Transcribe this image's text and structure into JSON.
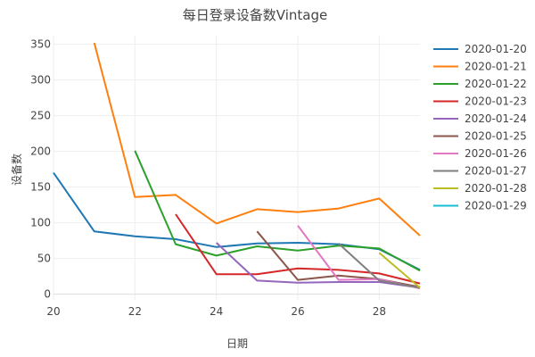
{
  "chart_data": {
    "type": "line",
    "title": "每日登录设备数Vintage",
    "xlabel": "日期",
    "ylabel": "设备数",
    "xlim": [
      20,
      29
    ],
    "ylim": [
      -8,
      362
    ],
    "xticks": [
      20,
      22,
      24,
      26,
      28
    ],
    "yticks": [
      0,
      50,
      100,
      150,
      200,
      250,
      300,
      350
    ],
    "grid": true,
    "legend_position": "right",
    "series": [
      {
        "name": "2020-01-20",
        "color": "#1f77b4",
        "x": [
          20,
          21,
          22,
          23,
          24,
          25,
          26,
          27,
          28,
          29
        ],
        "y": [
          170,
          88,
          81,
          77,
          66,
          71,
          72,
          70,
          63,
          34
        ]
      },
      {
        "name": "2020-01-21",
        "color": "#ff7f0e",
        "x": [
          21,
          22,
          23,
          24,
          25,
          26,
          27,
          28,
          29
        ],
        "y": [
          352,
          136,
          139,
          99,
          119,
          115,
          120,
          134,
          82
        ]
      },
      {
        "name": "2020-01-22",
        "color": "#2ca02c",
        "x": [
          22,
          23,
          24,
          25,
          26,
          27,
          28,
          29
        ],
        "y": [
          201,
          70,
          54,
          67,
          61,
          68,
          64,
          33
        ]
      },
      {
        "name": "2020-01-23",
        "color": "#d62728",
        "x": [
          23,
          24,
          25,
          26,
          27,
          28,
          29
        ],
        "y": [
          112,
          28,
          28,
          36,
          34,
          29,
          15
        ]
      },
      {
        "name": "2020-01-24",
        "color": "#9467bd",
        "x": [
          24,
          25,
          26,
          27,
          28,
          29
        ],
        "y": [
          72,
          19,
          16,
          17,
          17,
          9
        ]
      },
      {
        "name": "2020-01-25",
        "color": "#8c564b",
        "x": [
          25,
          26,
          27,
          28,
          29
        ],
        "y": [
          88,
          20,
          26,
          21,
          10
        ]
      },
      {
        "name": "2020-01-26",
        "color": "#e377c2",
        "x": [
          26,
          27,
          28,
          29
        ],
        "y": [
          96,
          20,
          21,
          8
        ]
      },
      {
        "name": "2020-01-27",
        "color": "#7f7f7f",
        "x": [
          27,
          28,
          29
        ],
        "y": [
          71,
          19,
          9
        ]
      },
      {
        "name": "2020-01-28",
        "color": "#bcbd22",
        "x": [
          28,
          29
        ],
        "y": [
          58,
          9
        ]
      },
      {
        "name": "2020-01-29",
        "color": "#17becf",
        "x": [
          29
        ],
        "y": [
          8
        ]
      }
    ]
  }
}
